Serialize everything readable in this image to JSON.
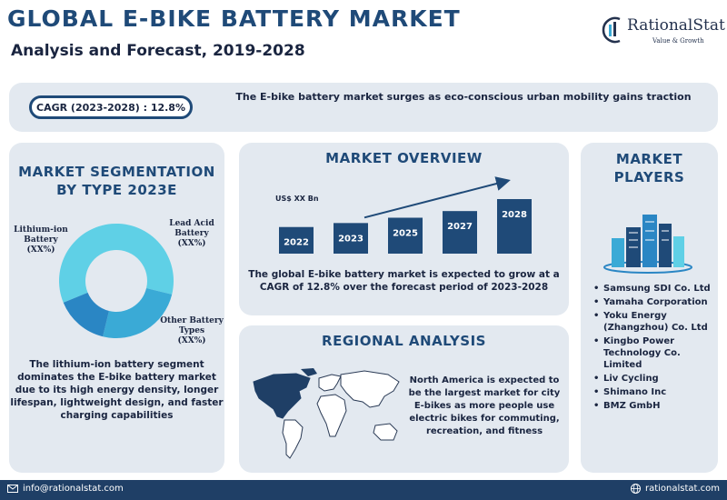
{
  "header": {
    "title": "GLOBAL E-BIKE BATTERY MARKET",
    "subtitle": "Analysis and Forecast, 2019-2028",
    "brand_name": "RationalStat",
    "brand_tagline": "Value & Growth"
  },
  "banner": {
    "cagr_label": "CAGR (2023-2028) : 12.8%",
    "headline": "The E-bike battery market surges as eco-conscious urban mobility gains traction"
  },
  "segmentation": {
    "heading_line1": "MARKET SEGMENTATION",
    "heading_line2": "BY TYPE 2023E",
    "description": "The lithium-ion battery segment dominates the E-bike battery market due to its high energy density, longer lifespan, lightweight design, and faster charging capabilities",
    "segments": [
      {
        "name_line1": "Lithium-ion",
        "name_line2": "Battery",
        "value": "(XX%)",
        "share": 60,
        "color": "#5fd0e6"
      },
      {
        "name_line1": "Lead Acid",
        "name_line2": "Battery",
        "value": "(XX%)",
        "share": 25,
        "color": "#3aaad6"
      },
      {
        "name_line1": "Other Battery",
        "name_line2": "Types",
        "value": "(XX%)",
        "share": 15,
        "color": "#2a86c4"
      }
    ]
  },
  "overview": {
    "heading": "MARKET OVERVIEW",
    "unit_label": "US$ XX Bn",
    "description": "The global E-bike battery market is expected to grow at a CAGR of 12.8% over the forecast period of 2023-2028"
  },
  "chart_data": {
    "type": "bar",
    "categories": [
      "2022",
      "2023",
      "2025",
      "2027",
      "2028"
    ],
    "values": [
      1.0,
      1.15,
      1.35,
      1.6,
      2.05
    ],
    "ylabel": "US$ XX Bn",
    "title": "",
    "bar_color": "#1f4a78",
    "trend_arrow": true
  },
  "regional": {
    "heading": "REGIONAL ANALYSIS",
    "description": "North America is expected to be the largest market for city E-bikes as more people use electric bikes for commuting, recreation, and fitness",
    "highlight_color": "#1f3f66",
    "base_color": "#ffffff"
  },
  "players": {
    "heading_line1": "MARKET",
    "heading_line2": "PLAYERS",
    "list": [
      "Samsung SDI Co. Ltd",
      "Yamaha Corporation",
      "Yoku Energy (Zhangzhou) Co. Ltd",
      "Kingbo Power Technology Co. Limited",
      "Liv Cycling",
      "Shimano Inc",
      "BMZ GmbH"
    ]
  },
  "footer": {
    "email": "info@rationalstat.com",
    "website": "rationalstat.com"
  },
  "colors": {
    "primary": "#1f4a78",
    "panel": "#e3e9f0",
    "footer": "#1f3f66",
    "text": "#1a2540"
  }
}
